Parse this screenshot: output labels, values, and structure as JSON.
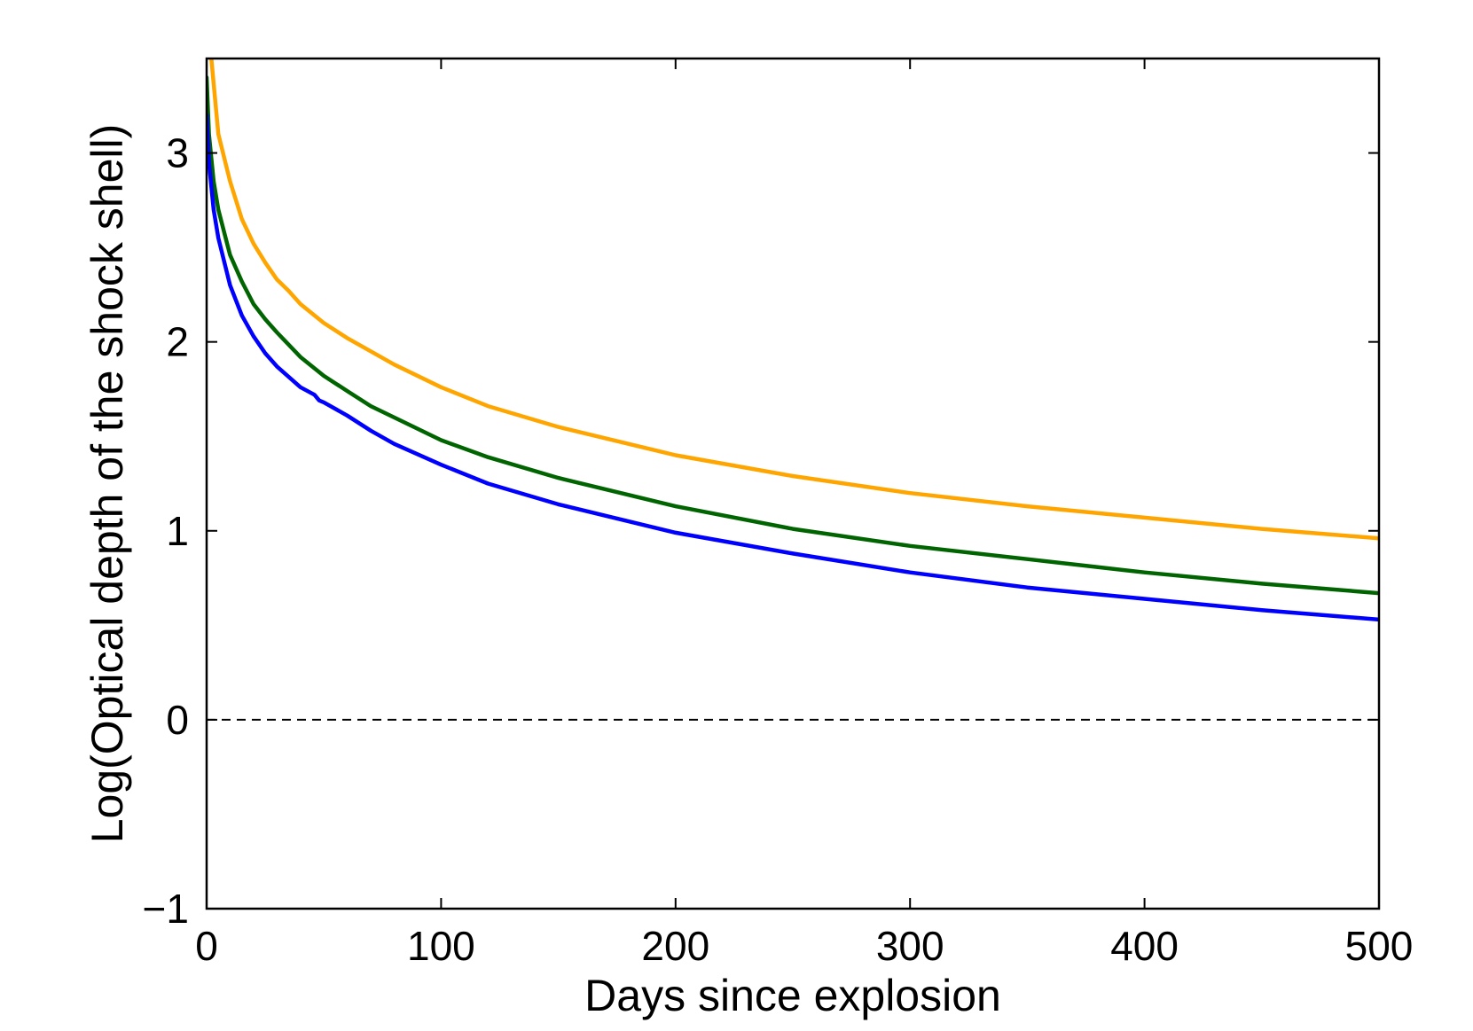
{
  "chart_data": {
    "type": "line",
    "xlabel": "Days since explosion",
    "ylabel": "Log(Optical depth of the shock shell)",
    "xlim": [
      0,
      500
    ],
    "ylim": [
      -1,
      3.5
    ],
    "xticks": [
      0,
      100,
      200,
      300,
      400,
      500
    ],
    "xtick_labels": [
      "0",
      "100",
      "200",
      "300",
      "400",
      "500"
    ],
    "yticks": [
      -1,
      0,
      1,
      2,
      3
    ],
    "ytick_labels": [
      "−1",
      "0",
      "1",
      "2",
      "3"
    ],
    "grid": false,
    "legend": "none",
    "reference_lines": [
      {
        "y": 0,
        "style": "dashed",
        "color": "#000000"
      }
    ],
    "series": [
      {
        "color": "#ffa500",
        "x": [
          2,
          5,
          10,
          15,
          20,
          25,
          30,
          35,
          40,
          50,
          60,
          70,
          80,
          100,
          120,
          150,
          200,
          250,
          300,
          350,
          400,
          450,
          500
        ],
        "y": [
          3.5,
          3.1,
          2.85,
          2.65,
          2.52,
          2.42,
          2.33,
          2.27,
          2.2,
          2.1,
          2.02,
          1.95,
          1.88,
          1.76,
          1.66,
          1.55,
          1.4,
          1.29,
          1.2,
          1.13,
          1.07,
          1.01,
          0.96
        ]
      },
      {
        "color": "#006400",
        "x": [
          0,
          1,
          3,
          5,
          10,
          15,
          20,
          25,
          30,
          40,
          50,
          60,
          70,
          80,
          100,
          120,
          150,
          200,
          250,
          300,
          350,
          400,
          450,
          500
        ],
        "y": [
          3.4,
          3.1,
          2.85,
          2.7,
          2.46,
          2.32,
          2.2,
          2.12,
          2.05,
          1.92,
          1.82,
          1.74,
          1.66,
          1.6,
          1.48,
          1.39,
          1.28,
          1.13,
          1.01,
          0.92,
          0.85,
          0.78,
          0.72,
          0.67
        ]
      },
      {
        "color": "#0000ff",
        "x": [
          0,
          1,
          3,
          5,
          10,
          15,
          20,
          25,
          30,
          40,
          46,
          48,
          50,
          60,
          70,
          80,
          100,
          120,
          150,
          200,
          250,
          300,
          350,
          400,
          450,
          500
        ],
        "y": [
          3.2,
          2.95,
          2.7,
          2.55,
          2.3,
          2.14,
          2.03,
          1.94,
          1.87,
          1.76,
          1.72,
          1.69,
          1.68,
          1.61,
          1.53,
          1.46,
          1.35,
          1.25,
          1.14,
          0.99,
          0.88,
          0.78,
          0.7,
          0.64,
          0.58,
          0.53
        ]
      }
    ]
  }
}
